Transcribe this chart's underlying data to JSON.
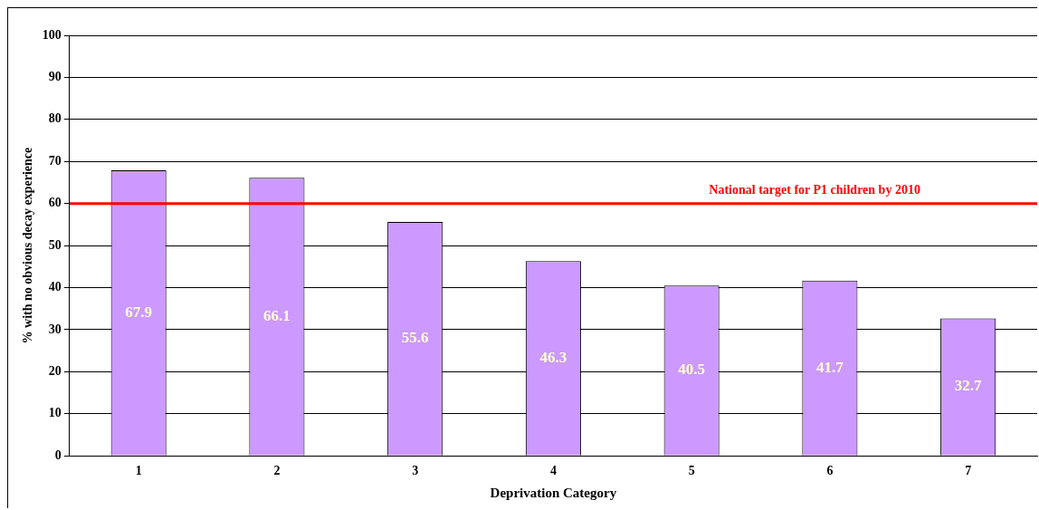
{
  "chart_data": {
    "type": "bar",
    "xlabel": "Deprivation Category",
    "ylabel": "% with no obvious decay experience",
    "categories": [
      "1",
      "2",
      "3",
      "4",
      "5",
      "6",
      "7"
    ],
    "values": [
      67.9,
      66.1,
      55.6,
      46.3,
      40.5,
      41.7,
      32.7
    ],
    "color": "#cc99ff",
    "ylim": [
      0,
      100
    ],
    "yticks": [
      0,
      10,
      20,
      30,
      40,
      50,
      60,
      70,
      80,
      90,
      100
    ],
    "grid": "y",
    "legend": false,
    "data_labels": true,
    "ref_lines": [
      {
        "axis": "y",
        "value": 60,
        "label": "National target for P1 children by 2010",
        "color": "#ff0000"
      }
    ]
  }
}
